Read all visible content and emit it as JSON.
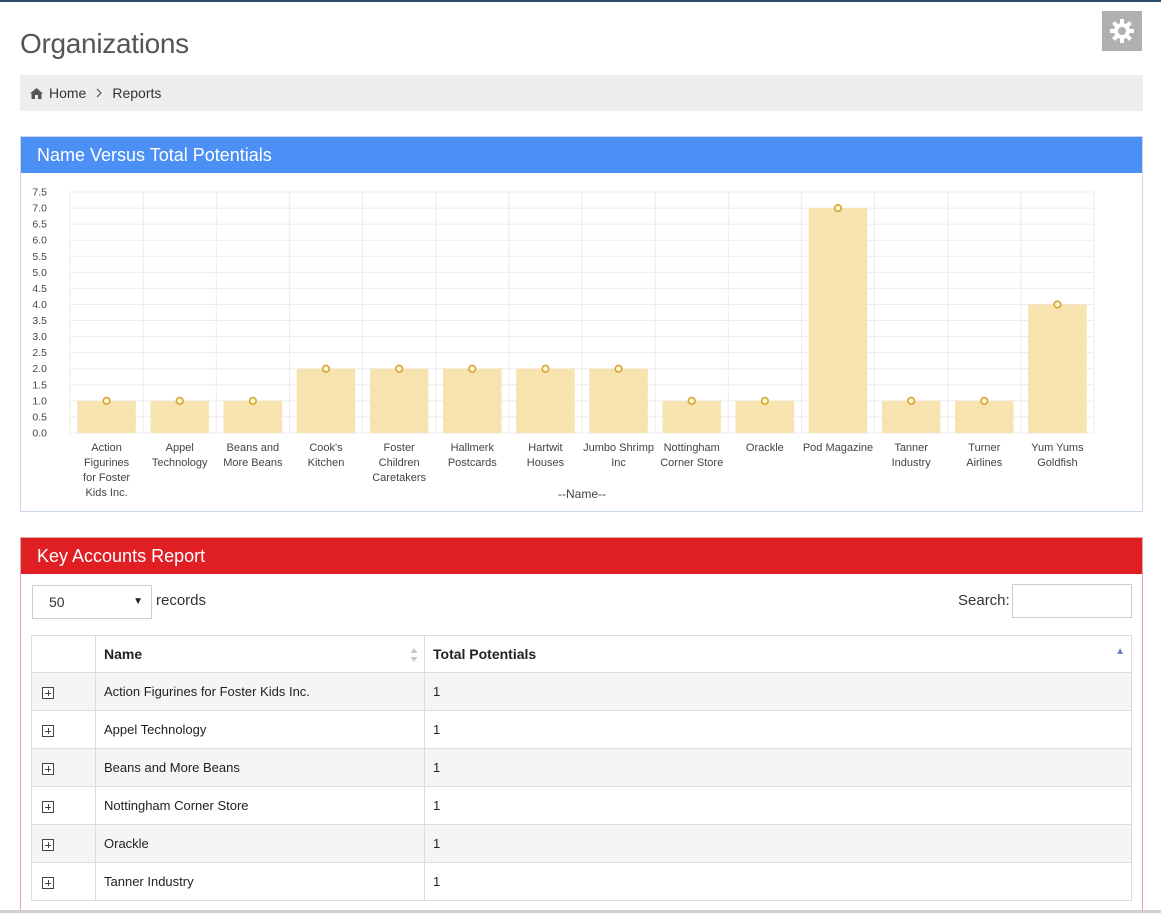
{
  "page": {
    "title": "Organizations"
  },
  "icons": {
    "settings": "gear-icon",
    "home": "home-icon",
    "separator": "chevron-right-icon",
    "expand": "plus-square-icon",
    "sort": "sort-icon"
  },
  "breadcrumb": {
    "home": "Home",
    "current": "Reports"
  },
  "chart_panel": {
    "title": "Name Versus Total Potentials",
    "header_color": "#4d90f5"
  },
  "chart_data": {
    "type": "bar",
    "title": "Name Versus Total Potentials",
    "xlabel": "--Name--",
    "ylabel": "",
    "ylim": [
      0,
      7.5
    ],
    "ytick_step": 0.5,
    "grid": true,
    "bar_color": "#f7e3b0",
    "marker_color": "#d4a62a",
    "categories": [
      "Action Figurines for Foster Kids Inc.",
      "Appel Technology",
      "Beans and More Beans",
      "Cook's Kitchen",
      "Foster Children Caretakers",
      "Hallmerk Postcards",
      "Hartwit Houses",
      "Jumbo Shrimp Inc",
      "Nottingham Corner Store",
      "Orackle",
      "Pod Magazine",
      "Tanner Industry",
      "Turner Airlines",
      "Yum Yums Goldfish"
    ],
    "values": [
      1,
      1,
      1,
      2,
      2,
      2,
      2,
      2,
      1,
      1,
      7,
      1,
      1,
      4
    ]
  },
  "accounts_panel": {
    "title": "Key Accounts Report",
    "header_color": "#e01f25",
    "page_size": "50",
    "records_label": "records",
    "search_label": "Search:",
    "search_value": "",
    "columns": {
      "name": "Name",
      "total": "Total Potentials"
    },
    "rows": [
      {
        "name": "Action Figurines for Foster Kids Inc.",
        "total": "1"
      },
      {
        "name": "Appel Technology",
        "total": "1"
      },
      {
        "name": "Beans and More Beans",
        "total": "1"
      },
      {
        "name": "Nottingham Corner Store",
        "total": "1"
      },
      {
        "name": "Orackle",
        "total": "1"
      },
      {
        "name": "Tanner Industry",
        "total": "1"
      }
    ]
  }
}
